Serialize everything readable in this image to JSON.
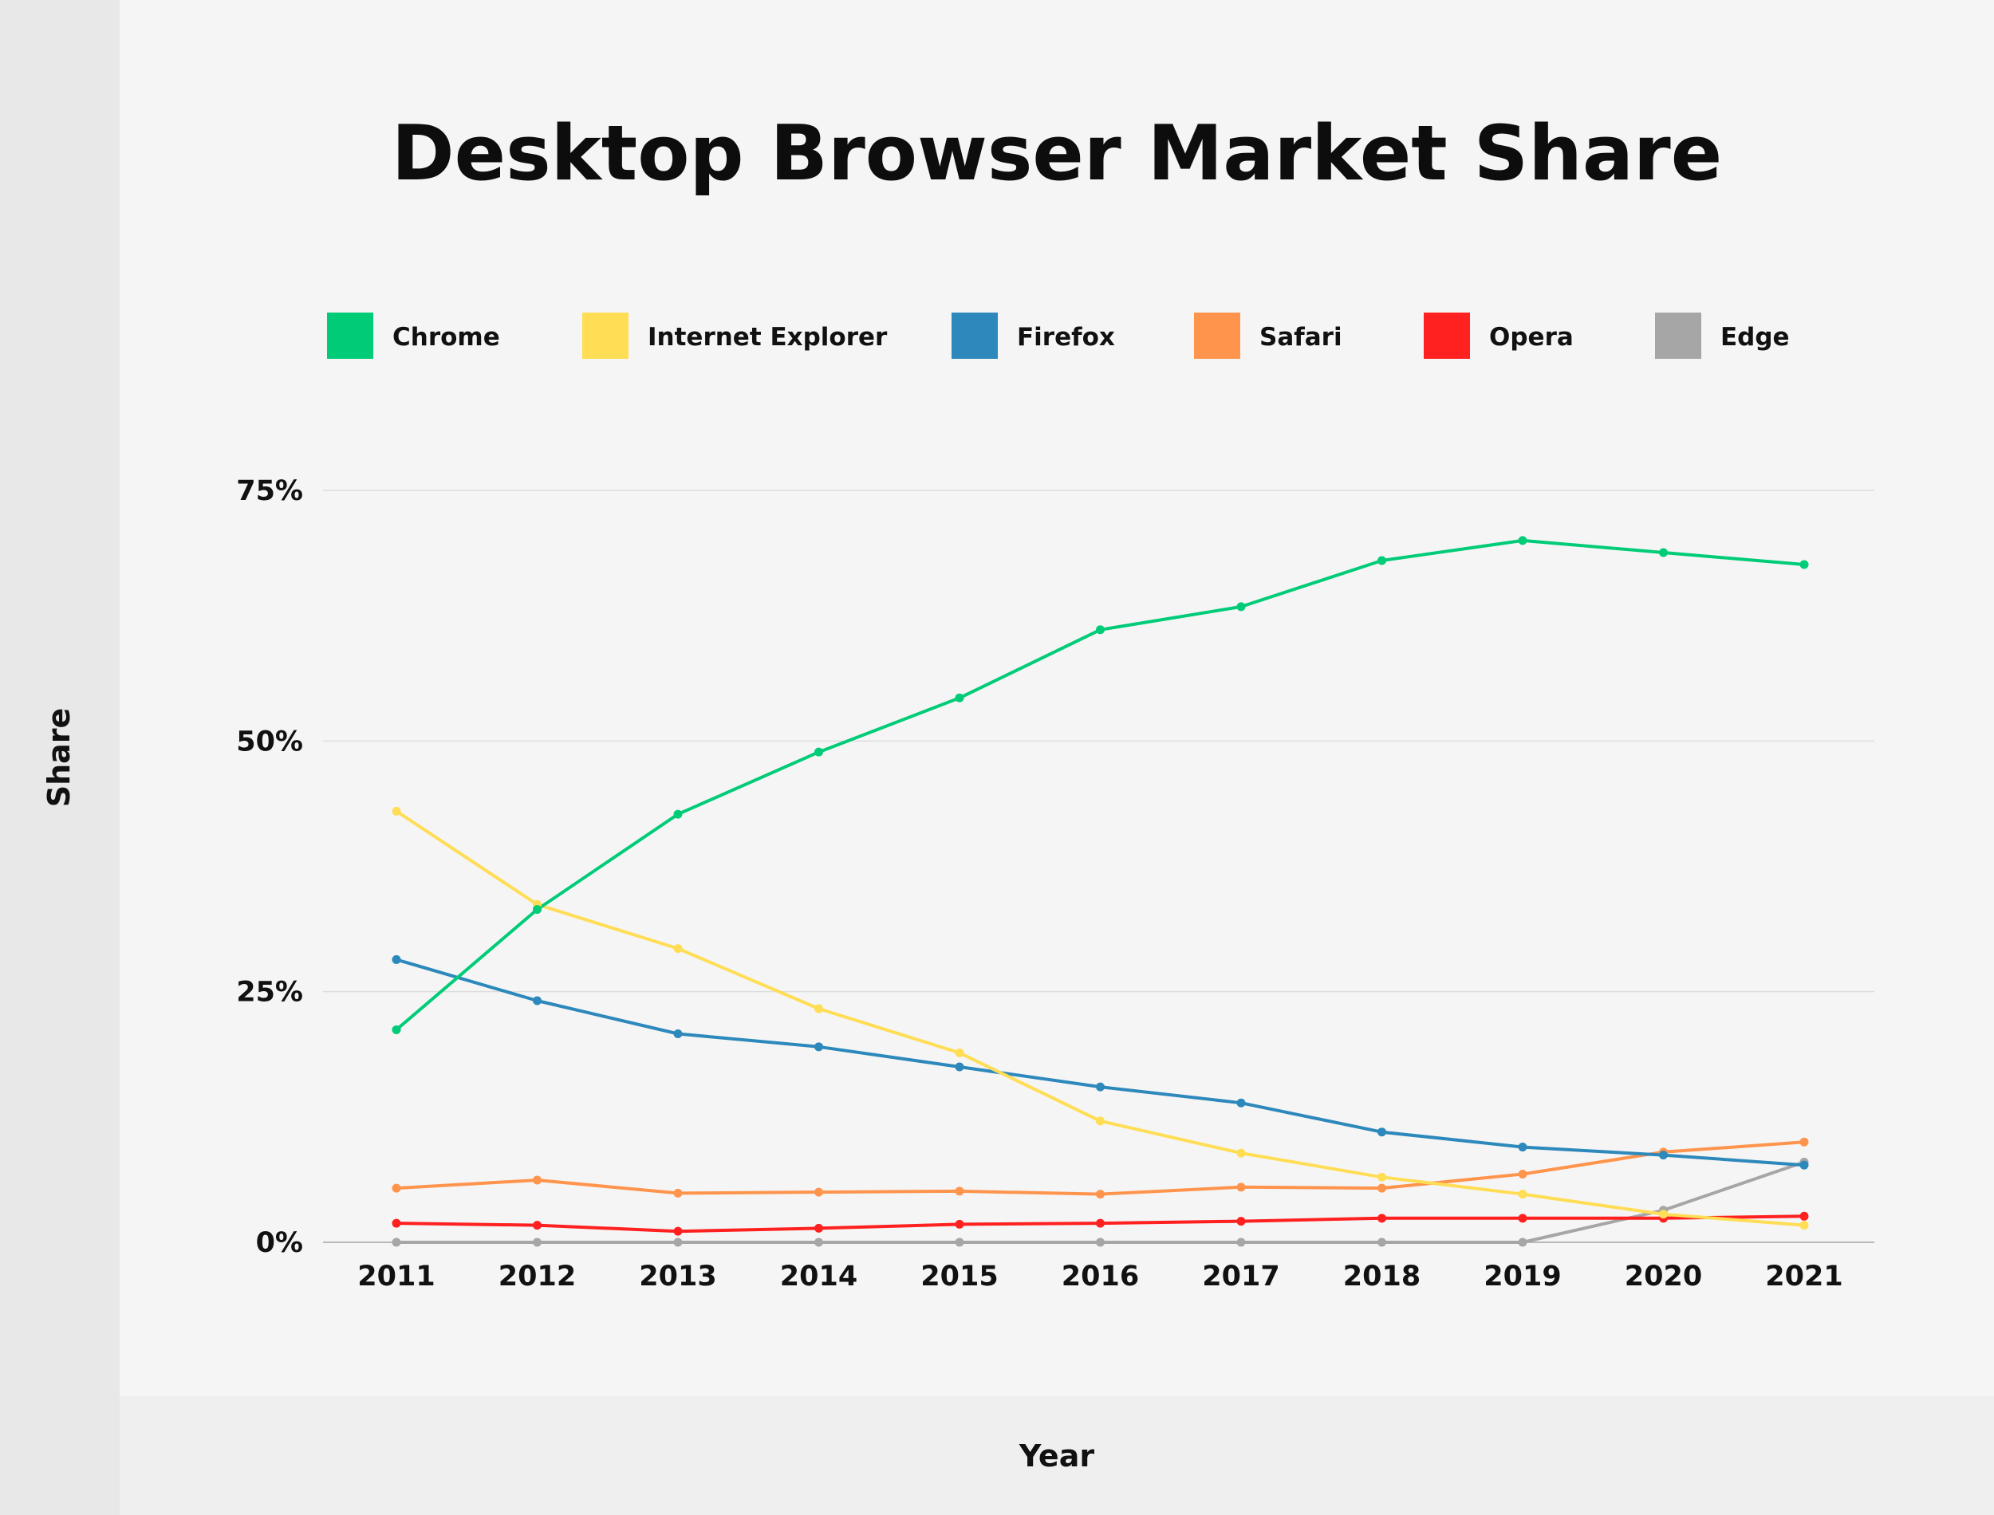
{
  "colors": {
    "Chrome": "#00cc78",
    "Internet Explorer": "#ffdd55",
    "Firefox": "#2d88bb",
    "Safari": "#ff944d",
    "Opera": "#ff2020",
    "Edge": "#a6a6a6"
  },
  "chart_data": {
    "type": "line",
    "title": "Desktop Browser Market Share",
    "xlabel": "Year",
    "ylabel": "Share",
    "x": [
      "2011",
      "2012",
      "2013",
      "2014",
      "2015",
      "2016",
      "2017",
      "2018",
      "2019",
      "2020",
      "2021"
    ],
    "ylim": [
      0,
      75
    ],
    "yticks": [
      0,
      25,
      50,
      75
    ],
    "ytick_labels": [
      "0%",
      "25%",
      "50%",
      "75%"
    ],
    "grid": true,
    "legend_position": "top",
    "series": [
      {
        "name": "Chrome",
        "values": [
          21.2,
          33.2,
          42.7,
          48.9,
          54.3,
          61.1,
          63.4,
          68.0,
          70.0,
          68.8,
          67.6
        ]
      },
      {
        "name": "Internet Explorer",
        "values": [
          43.0,
          33.7,
          29.3,
          23.3,
          18.9,
          12.1,
          8.9,
          6.5,
          4.8,
          2.8,
          1.7
        ]
      },
      {
        "name": "Firefox",
        "values": [
          28.2,
          24.1,
          20.8,
          19.5,
          17.5,
          15.5,
          13.9,
          11.0,
          9.5,
          8.7,
          7.7
        ]
      },
      {
        "name": "Safari",
        "values": [
          5.4,
          6.2,
          4.9,
          5.0,
          5.1,
          4.8,
          5.5,
          5.4,
          6.8,
          9.0,
          10.0
        ]
      },
      {
        "name": "Opera",
        "values": [
          1.9,
          1.7,
          1.1,
          1.4,
          1.8,
          1.9,
          2.1,
          2.4,
          2.4,
          2.4,
          2.6
        ]
      },
      {
        "name": "Edge",
        "values": [
          0,
          0,
          0,
          0,
          0,
          0,
          0,
          0,
          0,
          3.2,
          8.0
        ]
      }
    ]
  }
}
